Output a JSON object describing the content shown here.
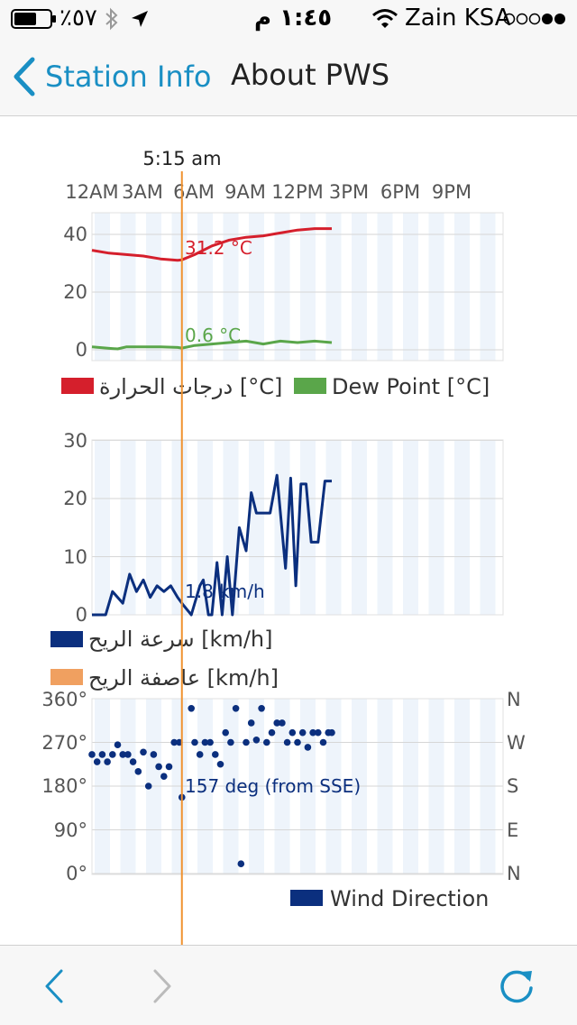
{
  "status_bar": {
    "battery_percent": "٪٥٧",
    "time": "١:٤٥ م",
    "carrier": "Zain KSA"
  },
  "nav": {
    "back_label": "Station Info",
    "title": "About PWS"
  },
  "timeline": {
    "cursor_time": "5:15 am",
    "cursor_hour": 5.25,
    "hour_labels": [
      "12AM",
      "3AM",
      "6AM",
      "9AM",
      "12PM",
      "3PM",
      "6PM",
      "9PM"
    ]
  },
  "colors": {
    "accent": "#1a8fc4",
    "cursor": "#f0922f",
    "temperature": "#d51f2c",
    "dew_point": "#5aa64a",
    "wind_speed": "#0b2f7e",
    "wind_gust": "#f0a060",
    "wind_direction": "#0b2f7e"
  },
  "chart_data": [
    {
      "type": "line",
      "y_ticks": [
        "40",
        "20",
        "0"
      ],
      "ylim": [
        0,
        47
      ],
      "series": [
        {
          "name": "درجات الحرارة [°C]",
          "color": "#d51f2c",
          "x": [
            0,
            1,
            2,
            3,
            4,
            5,
            5.25,
            6,
            7,
            8,
            9,
            10,
            11,
            12,
            13,
            14
          ],
          "values": [
            34.5,
            33.5,
            33,
            32.5,
            31.5,
            31,
            31.2,
            33,
            36,
            38,
            39,
            39.5,
            40.5,
            41.5,
            42,
            42
          ]
        },
        {
          "name": "Dew Point [°C]",
          "color": "#5aa64a",
          "x": [
            0,
            1,
            1.5,
            2,
            3,
            4,
            5,
            5.25,
            6,
            7,
            8,
            9,
            10,
            11,
            12,
            13,
            14
          ],
          "values": [
            1,
            0.5,
            0.3,
            1,
            1,
            1,
            0.8,
            0.6,
            1.5,
            2,
            2.5,
            3,
            2,
            3,
            2.5,
            3,
            2.5
          ]
        }
      ],
      "annotations": [
        "31.2 °C",
        "0.6 °C"
      ]
    },
    {
      "type": "line",
      "y_ticks": [
        "30",
        "20",
        "10",
        "0"
      ],
      "ylim": [
        0,
        30
      ],
      "series": [
        {
          "name": "سرعة الريح [km/h]",
          "color": "#0b2f7e",
          "x": [
            0,
            0.8,
            1.2,
            1.8,
            2.2,
            2.6,
            3,
            3.4,
            3.8,
            4.2,
            4.6,
            5,
            5.3,
            5.8,
            6.3,
            6.5,
            6.8,
            7,
            7.3,
            7.6,
            7.9,
            8.2,
            8.6,
            9,
            9.3,
            9.6,
            10,
            10.4,
            10.8,
            11.3,
            11.6,
            11.9,
            12.2,
            12.5,
            12.8,
            13.2,
            13.6,
            14
          ],
          "values": [
            0,
            0,
            4,
            2,
            7,
            4,
            6,
            3,
            5,
            4,
            5,
            3,
            1.8,
            0,
            5,
            6,
            0,
            0,
            9,
            0,
            10,
            0,
            15,
            11,
            21,
            17.5,
            17.5,
            17.5,
            24,
            8,
            23.5,
            5,
            22.5,
            22.5,
            12.5,
            12.5,
            23,
            23
          ]
        },
        {
          "name": "عاصفة الريح [km/h]",
          "color": "#f0a060",
          "x": [],
          "values": []
        }
      ],
      "annotations": [
        "1.8 km/h"
      ]
    },
    {
      "type": "scatter",
      "y_ticks": [
        "360°",
        "270°",
        "180°",
        "90°",
        "0°"
      ],
      "y2_ticks": [
        "N",
        "W",
        "S",
        "E",
        "N"
      ],
      "ylim": [
        0,
        360
      ],
      "series": [
        {
          "name": "Wind Direction",
          "color": "#0b2f7e",
          "x": [
            0,
            0.3,
            0.6,
            0.9,
            1.2,
            1.5,
            1.8,
            2.1,
            2.4,
            2.7,
            3,
            3.3,
            3.6,
            3.9,
            4.2,
            4.5,
            4.8,
            5.1,
            5.25,
            5.8,
            6,
            6.3,
            6.6,
            6.9,
            7.2,
            7.5,
            7.8,
            8.1,
            8.4,
            8.7,
            9,
            9.3,
            9.6,
            9.9,
            10.2,
            10.5,
            10.8,
            11.1,
            11.4,
            11.7,
            12,
            12.3,
            12.6,
            12.9,
            13.2,
            13.5,
            13.8,
            14
          ],
          "values": [
            245,
            230,
            245,
            230,
            245,
            265,
            245,
            245,
            230,
            210,
            250,
            180,
            245,
            220,
            200,
            220,
            270,
            270,
            157,
            340,
            270,
            245,
            270,
            270,
            245,
            225,
            290,
            270,
            340,
            20,
            270,
            310,
            275,
            340,
            270,
            290,
            310,
            310,
            270,
            290,
            270,
            290,
            260,
            290,
            290,
            270,
            290,
            290
          ]
        }
      ],
      "annotations": [
        "157 deg (from SSE)"
      ]
    }
  ]
}
